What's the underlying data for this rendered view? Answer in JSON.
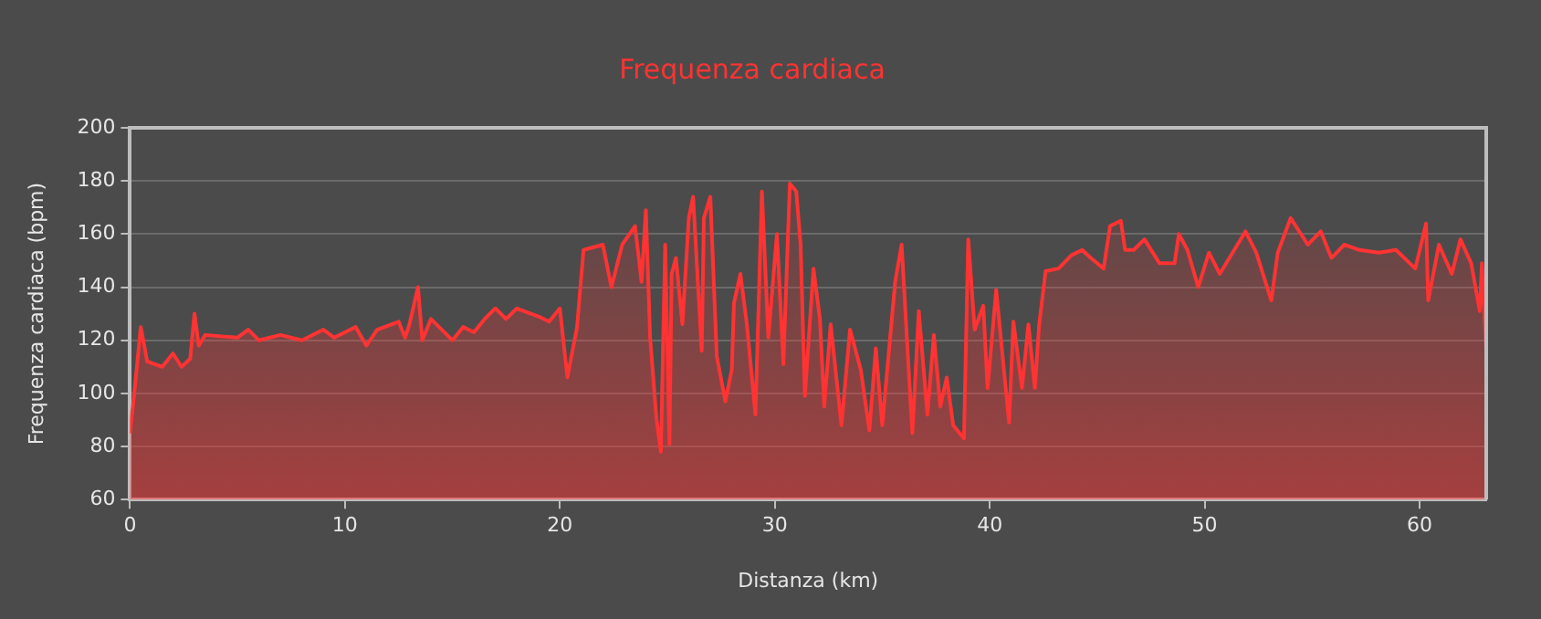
{
  "chart_data": {
    "type": "area",
    "title": "Frequenza cardiaca",
    "xlabel": "Distanza (km)",
    "ylabel": "Frequenza cardiaca (bpm)",
    "xlim": [
      0,
      63.1
    ],
    "xticks": [
      0,
      10,
      20,
      30,
      40,
      50,
      60
    ],
    "ylim": [
      60,
      200
    ],
    "yticks": [
      60,
      80,
      100,
      120,
      140,
      160,
      180,
      200
    ],
    "grid": "y",
    "legend": false,
    "marker": "none",
    "series": [
      {
        "color": "#ff3333",
        "x": [
          0,
          0.2,
          0.5,
          0.8,
          1.5,
          2,
          2.4,
          2.8,
          3.0,
          3.2,
          3.5,
          5,
          5.5,
          6,
          7,
          8,
          9,
          9.5,
          10.5,
          11,
          11.5,
          12.5,
          12.8,
          13,
          13.4,
          13.6,
          14,
          15,
          15.5,
          16,
          16.5,
          17,
          17.5,
          18,
          19,
          19.5,
          20,
          20.35,
          20.8,
          21.1,
          22,
          22.4,
          22.9,
          23.5,
          23.8,
          24.0,
          24.2,
          24.5,
          24.7,
          24.9,
          25.1,
          25.2,
          25.4,
          25.7,
          26.0,
          26.2,
          26.6,
          26.7,
          27.0,
          27.3,
          27.7,
          28.0,
          28.1,
          28.4,
          28.7,
          29.1,
          29.4,
          29.7,
          30.1,
          30.4,
          30.7,
          31.0,
          31.2,
          31.4,
          31.8,
          32.1,
          32.3,
          32.6,
          33.1,
          33.5,
          34.0,
          34.4,
          34.7,
          35.0,
          35.4,
          35.6,
          35.9,
          36.4,
          36.7,
          37.1,
          37.4,
          37.7,
          38.0,
          38.3,
          38.8,
          39.0,
          39.3,
          39.7,
          39.9,
          40.3,
          40.9,
          41.1,
          41.5,
          41.8,
          42.1,
          42.3,
          42.6,
          43.2,
          43.8,
          44.3,
          44.7,
          45.3,
          45.6,
          46.1,
          46.3,
          46.7,
          47.2,
          47.9,
          48.6,
          48.8,
          49.2,
          49.7,
          50.2,
          50.7,
          51.3,
          51.9,
          52.4,
          53.1,
          53.4,
          54.0,
          54.8,
          55.4,
          55.9,
          56.5,
          57.2,
          58.1,
          58.9,
          59.8,
          60.3,
          60.4,
          60.9,
          61.5,
          61.9,
          62.4,
          62.8,
          62.9,
          63.1
        ],
        "values": [
          85,
          100,
          125,
          112,
          110,
          115,
          110,
          113,
          130,
          118,
          122,
          121,
          124,
          120,
          122,
          120,
          124,
          121,
          125,
          118,
          124,
          127,
          121,
          126,
          140,
          120,
          128,
          120,
          125,
          123,
          128,
          132,
          128,
          132,
          129,
          127,
          132,
          106,
          125,
          154,
          156,
          140,
          156,
          163,
          142,
          169,
          121,
          90,
          78,
          156,
          81,
          145,
          151,
          126,
          166,
          174,
          116,
          166,
          174,
          114,
          97,
          109,
          134,
          145,
          126,
          92,
          176,
          121,
          160,
          111,
          179,
          176,
          156,
          99,
          147,
          128,
          95,
          126,
          88,
          124,
          109,
          86,
          117,
          88,
          124,
          142,
          156,
          85,
          131,
          92,
          122,
          95,
          106,
          88,
          83,
          158,
          124,
          133,
          102,
          139,
          89,
          127,
          102,
          126,
          102,
          126,
          146,
          147,
          152,
          154,
          151,
          147,
          163,
          165,
          154,
          154,
          158,
          149,
          149,
          160,
          154,
          140,
          153,
          145,
          153,
          161,
          153,
          135,
          153,
          166,
          156,
          161,
          151,
          156,
          154,
          153,
          154,
          147,
          164,
          135,
          156,
          145,
          158,
          149,
          131,
          149,
          116
        ]
      }
    ]
  }
}
